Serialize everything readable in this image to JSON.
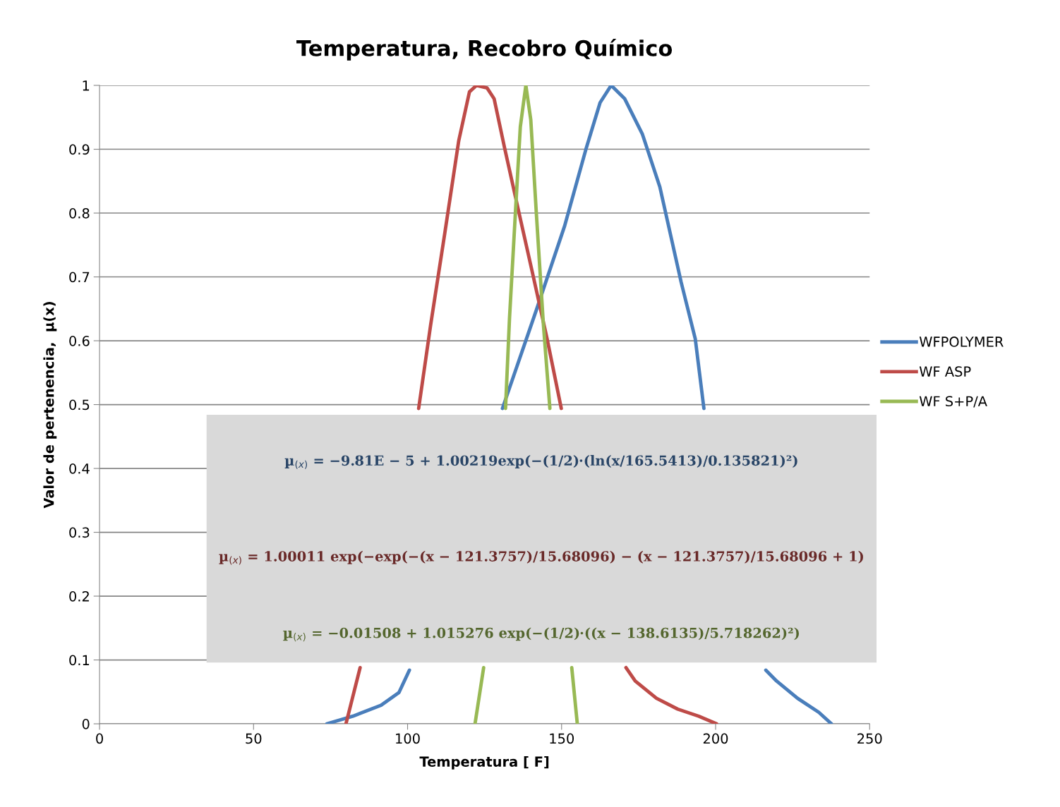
{
  "chart_data": {
    "type": "line",
    "title": "Temperatura, Recobro Químico",
    "xlabel": "Temperatura [ F]",
    "ylabel": "Valor de pertenencia,  µ(x)",
    "xlim": [
      0,
      250
    ],
    "xticks": [
      0,
      50,
      100,
      150,
      200,
      250
    ],
    "ylim": [
      0,
      1
    ],
    "yticks": [
      0,
      0.1,
      0.2,
      0.3,
      0.4,
      0.5,
      0.6,
      0.7,
      0.8,
      0.9,
      1
    ],
    "grid": "y",
    "legend": "right",
    "line_style": "solid",
    "marker": "none",
    "series": [
      {
        "name": "WFPOLYMER",
        "color": "#4a7ebb",
        "x": [
          73.8,
          82.3,
          91.4,
          97.2,
          100.6,
          115,
          130.8,
          141.8,
          151,
          157.9,
          162.5,
          166.1,
          170.5,
          176.2,
          181.9,
          188.8,
          193.4,
          196.2,
          206,
          216.3,
          219.8,
          226.6,
          233.5,
          237.6
        ],
        "values": [
          0,
          0.012,
          0.029,
          0.049,
          0.084,
          null,
          0.494,
          0.648,
          0.78,
          0.9,
          0.973,
          1,
          0.979,
          0.924,
          0.841,
          0.692,
          0.603,
          0.494,
          null,
          0.084,
          0.067,
          0.04,
          0.018,
          0
        ]
      },
      {
        "name": "WF ASP",
        "color": "#be4b48",
        "x": [
          80,
          84.6,
          94,
          103.6,
          107.5,
          112.1,
          116.6,
          120.1,
          122.4,
          125.8,
          128.1,
          131.5,
          136.1,
          140.7,
          145.3,
          149.9,
          160,
          170.9,
          173.9,
          180.8,
          187.7,
          194.5,
          200.3
        ],
        "values": [
          0,
          0.088,
          null,
          0.494,
          0.625,
          0.769,
          0.913,
          0.99,
          1,
          0.996,
          0.979,
          0.902,
          0.802,
          0.703,
          0.603,
          0.494,
          null,
          0.088,
          0.067,
          0.04,
          0.023,
          0.012,
          0
        ]
      },
      {
        "name": "WF S+P/A",
        "color": "#98b954",
        "x": [
          121.9,
          124.7,
          128,
          131.8,
          133.1,
          135,
          136.6,
          138.4,
          140,
          141.8,
          144.1,
          146.2,
          150,
          153.3,
          155.1
        ],
        "values": [
          0,
          0.088,
          null,
          0.494,
          0.636,
          0.8,
          0.935,
          1,
          0.946,
          0.8,
          0.625,
          0.494,
          null,
          0.088,
          0
        ]
      }
    ],
    "annotations": [
      "µ$_{(x)}$ = −9.81E − 5 + 1.00219exp(−(1/2)·(ln(x/165.5413)/0.135821)²)",
      "µ$_{(x)}$ = 1.00011 exp(−exp(−(x − 121.3757)/15.68096) − (x − 121.3757)/15.68096 + 1)",
      "µ$_{(x)}$ = −0.01508 + 1.015276 exp(−(1/2)·((x − 138.6135)/5.718262)²)"
    ]
  }
}
